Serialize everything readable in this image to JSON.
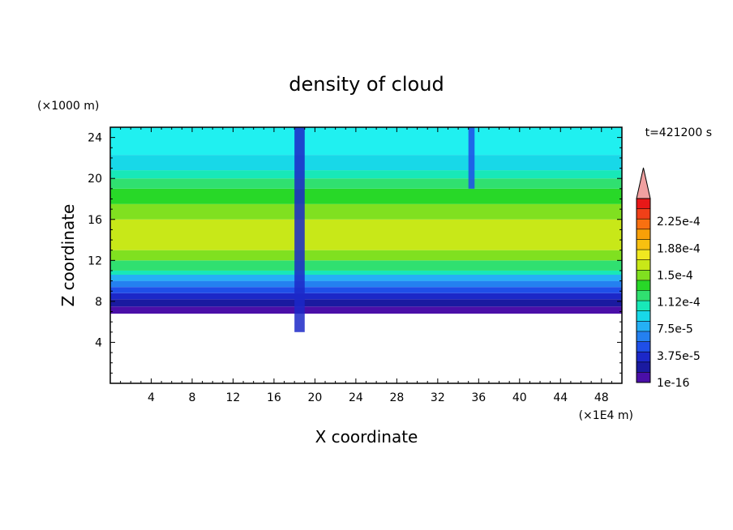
{
  "chart_data": {
    "type": "heatmap",
    "title": "density of cloud",
    "xlabel": "X coordinate",
    "ylabel": "Z coordinate",
    "x_unit": "(×1E4 m)",
    "y_unit": "(×1000 m)",
    "time_label": "t=421200 s",
    "xlim": [
      0,
      50
    ],
    "ylim": [
      0,
      25
    ],
    "x_ticks": [
      4,
      8,
      12,
      16,
      20,
      24,
      28,
      32,
      36,
      40,
      44,
      48
    ],
    "y_ticks": [
      4,
      8,
      12,
      16,
      20,
      24
    ],
    "colorbar": {
      "levels": [
        "1e-16",
        "3.75e-5",
        "7.5e-5",
        "1.12e-4",
        "1.5e-4",
        "1.88e-4",
        "2.25e-4"
      ],
      "colors": [
        "#4a0fa8",
        "#1a1aa0",
        "#1c28c8",
        "#1f4fe8",
        "#2480f0",
        "#25b0f5",
        "#18d8e8",
        "#18e8b8",
        "#30e070",
        "#28d828",
        "#80e020",
        "#c8e818",
        "#f0e820",
        "#f8c010",
        "#f8a008",
        "#f87010",
        "#f04018",
        "#e81818"
      ],
      "extend_color": "#f0a0a0"
    },
    "field_bands": [
      {
        "z": [
          6.8,
          7.5
        ],
        "color": "#4a0fa8"
      },
      {
        "z": [
          7.5,
          8.2
        ],
        "color": "#1a1aa0"
      },
      {
        "z": [
          8.2,
          8.8
        ],
        "color": "#1c28c8"
      },
      {
        "z": [
          8.8,
          9.4
        ],
        "color": "#1f4fe8"
      },
      {
        "z": [
          9.4,
          10.0
        ],
        "color": "#2480f0"
      },
      {
        "z": [
          10.0,
          10.6
        ],
        "color": "#25b0f5"
      },
      {
        "z": [
          10.6,
          11.0
        ],
        "color": "#18e8b8"
      },
      {
        "z": [
          11.0,
          12.0
        ],
        "color": "#30e070"
      },
      {
        "z": [
          12.0,
          13.0
        ],
        "color": "#80e020"
      },
      {
        "z": [
          13.0,
          16.0
        ],
        "color": "#c8e818"
      },
      {
        "z": [
          16.0,
          17.5
        ],
        "color": "#80e020"
      },
      {
        "z": [
          17.5,
          19.0
        ],
        "color": "#28d828"
      },
      {
        "z": [
          19.0,
          20.0
        ],
        "color": "#30e070"
      },
      {
        "z": [
          20.0,
          20.8
        ],
        "color": "#18e8b8"
      },
      {
        "z": [
          20.8,
          22.3
        ],
        "color": "#18d8e8"
      },
      {
        "z": [
          22.3,
          25.0
        ],
        "color": "#20f0f0"
      }
    ],
    "features": [
      {
        "type": "column",
        "x": [
          18.0,
          19.0
        ],
        "z": [
          5.0,
          25.0
        ],
        "color": "#1c28c8"
      },
      {
        "type": "column",
        "x": [
          35.0,
          35.6
        ],
        "z": [
          19.0,
          25.0
        ],
        "color": "#1f4fe8"
      }
    ]
  }
}
